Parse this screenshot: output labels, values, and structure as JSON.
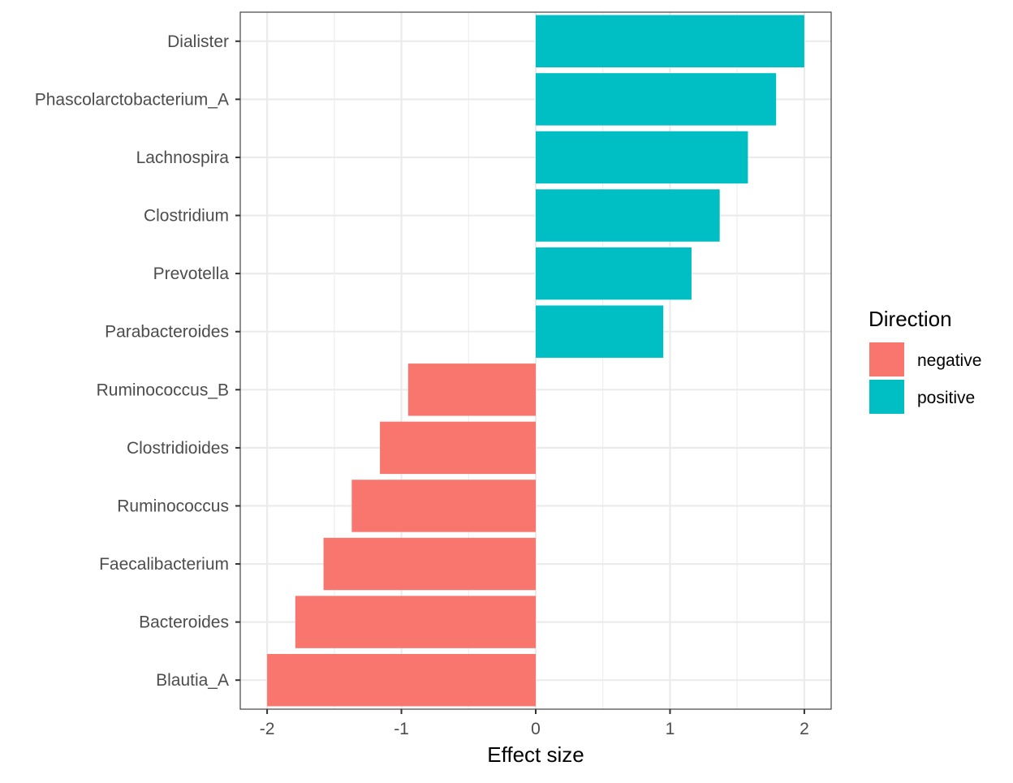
{
  "chart_data": {
    "type": "bar",
    "orientation": "horizontal",
    "categories": [
      "Dialister",
      "Phascolarctobacterium_A",
      "Lachnospira",
      "Clostridium",
      "Prevotella",
      "Parabacteroides",
      "Ruminococcus_B",
      "Clostridioides",
      "Ruminococcus",
      "Faecalibacterium",
      "Bacteroides",
      "Blautia_A"
    ],
    "values": [
      2.0,
      1.79,
      1.58,
      1.37,
      1.16,
      0.95,
      -0.95,
      -1.16,
      -1.37,
      -1.58,
      -1.79,
      -2.0
    ],
    "direction": [
      "positive",
      "positive",
      "positive",
      "positive",
      "positive",
      "positive",
      "negative",
      "negative",
      "negative",
      "negative",
      "negative",
      "negative"
    ],
    "xlabel": "Effect size",
    "ylabel": "",
    "xlim": [
      -2.2,
      2.2
    ],
    "xticks": [
      -2,
      -1,
      0,
      1,
      2
    ],
    "xtick_labels": [
      "-2",
      "-1",
      "0",
      "1",
      "2"
    ],
    "grid": true,
    "legend": {
      "title": "Direction",
      "placement": "right",
      "entries": [
        {
          "label": "negative",
          "color": "#F8766D"
        },
        {
          "label": "positive",
          "color": "#00BFC4"
        }
      ]
    }
  }
}
